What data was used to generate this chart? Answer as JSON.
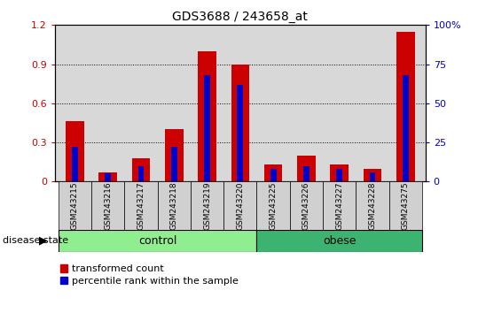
{
  "title": "GDS3688 / 243658_at",
  "samples": [
    "GSM243215",
    "GSM243216",
    "GSM243217",
    "GSM243218",
    "GSM243219",
    "GSM243220",
    "GSM243225",
    "GSM243226",
    "GSM243227",
    "GSM243228",
    "GSM243275"
  ],
  "transformed_count": [
    0.46,
    0.07,
    0.18,
    0.4,
    1.0,
    0.9,
    0.13,
    0.2,
    0.13,
    0.1,
    1.15
  ],
  "percentile_rank_pct": [
    22,
    5,
    10,
    22,
    68,
    62,
    8,
    10,
    8,
    6,
    68
  ],
  "groups": [
    {
      "label": "control",
      "start": 0,
      "end": 6,
      "color": "#90EE90"
    },
    {
      "label": "obese",
      "start": 6,
      "end": 11,
      "color": "#3CB371"
    }
  ],
  "ylim_left": [
    0,
    1.2
  ],
  "ylim_right": [
    0,
    100
  ],
  "yticks_left": [
    0,
    0.3,
    0.6,
    0.9,
    1.2
  ],
  "yticks_right": [
    0,
    25,
    50,
    75,
    100
  ],
  "bar_color_red": "#CC0000",
  "bar_color_blue": "#0000CC",
  "bg_color_plot": "#D8D8D8",
  "bg_color_fig": "#FFFFFF",
  "disease_state_label": "disease state",
  "legend_red": "transformed count",
  "legend_blue": "percentile rank within the sample"
}
